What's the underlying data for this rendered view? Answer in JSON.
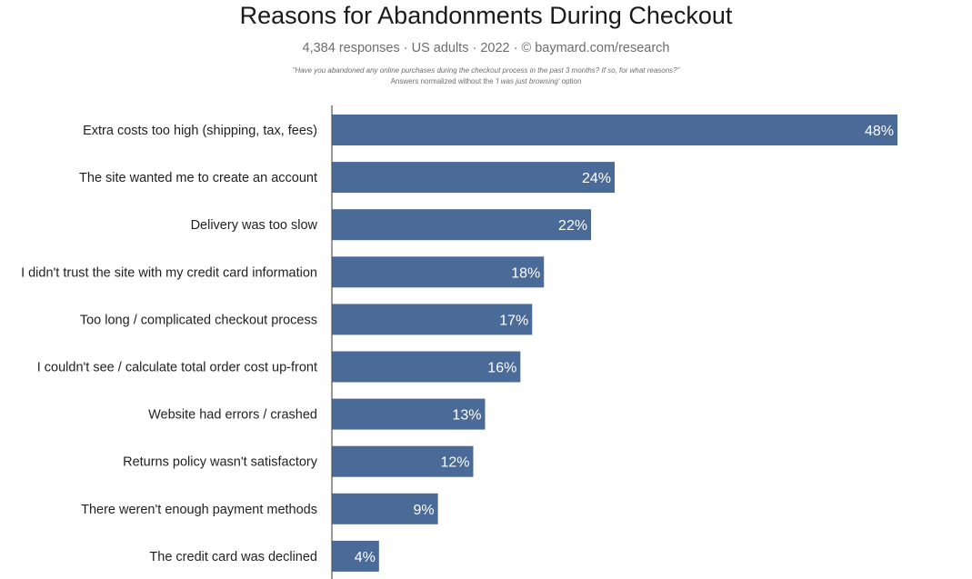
{
  "header": {
    "title": "Reasons for Abandonments During Checkout",
    "subtitle": "4,384 responses  ·  US adults  ·  2022  ·  ©  baymard.com/research",
    "question": "\"Have you abandoned any online purchases during the checkout process in the past 3 months? If so, for what reasons?\"",
    "note_prefix": "Answers normalized without the ",
    "note_emphasis": "'I was just browsing'",
    "note_suffix": " option"
  },
  "chart_data": {
    "type": "bar",
    "orientation": "horizontal",
    "title": "Reasons for Abandonments During Checkout",
    "categories": [
      "Extra costs too high (shipping, tax, fees)",
      "The site wanted me to create an account",
      "Delivery was too slow",
      "I didn't trust the site with my credit card information",
      "Too long / complicated checkout process",
      "I couldn't see / calculate total order cost up-front",
      "Website had errors / crashed",
      "Returns policy wasn't satisfactory",
      "There weren't enough payment methods",
      "The credit card was declined"
    ],
    "values": [
      48,
      24,
      22,
      18,
      17,
      16,
      13,
      12,
      9,
      4
    ],
    "value_labels": [
      "48%",
      "24%",
      "22%",
      "18%",
      "17%",
      "16%",
      "13%",
      "12%",
      "9%",
      "4%"
    ],
    "unit": "%",
    "xlim": [
      0,
      48
    ],
    "grid": false,
    "legend": "none",
    "bar_color": "#4a6a98",
    "axis_color": "#555555"
  }
}
